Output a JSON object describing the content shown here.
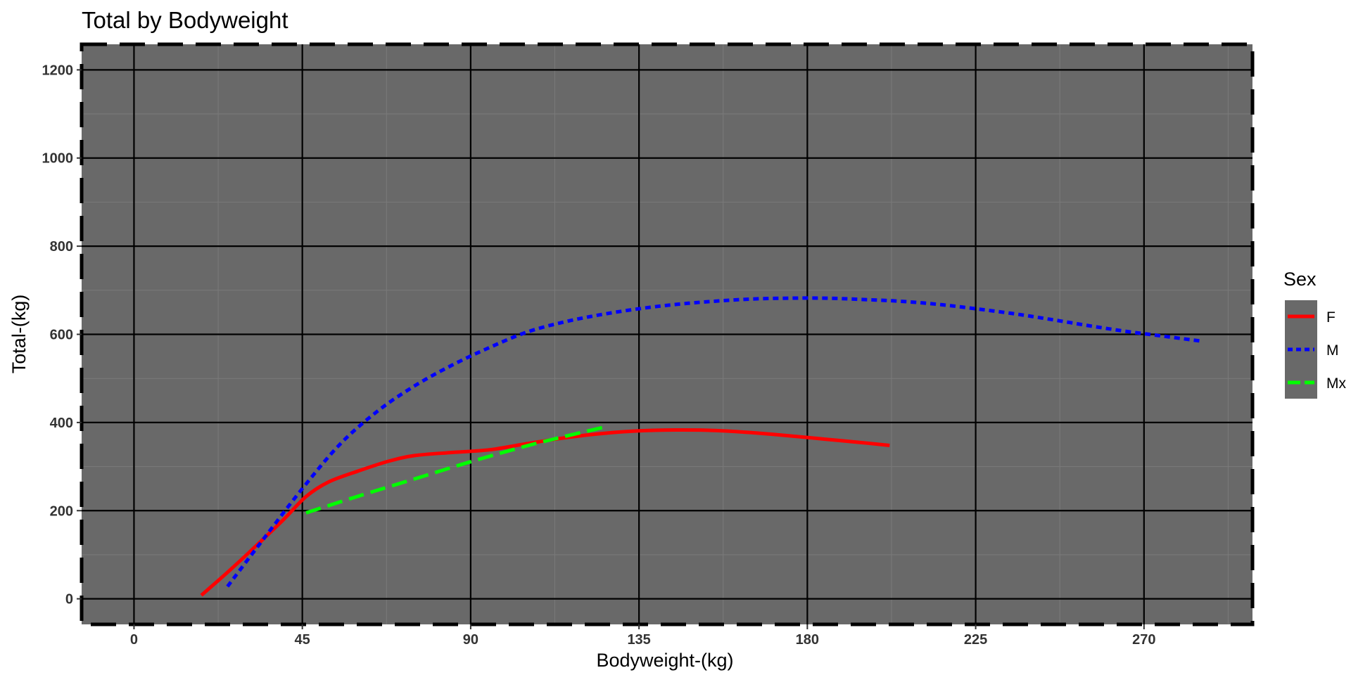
{
  "chart_data": {
    "type": "line",
    "title": "Total by Bodyweight",
    "xlabel": "Bodyweight-(kg)",
    "ylabel": "Total-(kg)",
    "xlim": [
      -14,
      299
    ],
    "ylim": [
      -58,
      1258
    ],
    "x_ticks": [
      0,
      45,
      90,
      135,
      180,
      225,
      270
    ],
    "y_ticks": [
      0,
      200,
      400,
      600,
      800,
      1000,
      1200
    ],
    "grid": true,
    "legend": {
      "title": "Sex",
      "position": "right"
    },
    "series": [
      {
        "name": "F",
        "color": "#ff0000",
        "dash": "solid",
        "x": [
          18,
          25,
          32,
          40,
          46,
          52,
          60,
          68,
          75,
          85,
          95,
          105,
          115,
          125,
          135,
          145,
          155,
          165,
          175,
          185,
          195,
          202
        ],
        "y": [
          8,
          60,
          115,
          180,
          232,
          265,
          290,
          312,
          325,
          332,
          338,
          352,
          365,
          375,
          381,
          383,
          382,
          377,
          370,
          362,
          354,
          348
        ]
      },
      {
        "name": "M",
        "color": "#0000ff",
        "dash": "dotted",
        "x": [
          25,
          35,
          45,
          55,
          65,
          75,
          85,
          95,
          105,
          115,
          125,
          135,
          145,
          155,
          165,
          175,
          185,
          195,
          205,
          215,
          225,
          235,
          245,
          255,
          265,
          275,
          285
        ],
        "y": [
          28,
          140,
          250,
          350,
          425,
          483,
          530,
          570,
          605,
          628,
          645,
          658,
          668,
          675,
          680,
          682,
          682,
          679,
          675,
          668,
          658,
          647,
          634,
          620,
          607,
          596,
          585
        ]
      },
      {
        "name": "Mx",
        "color": "#00ff00",
        "dash": "dashed",
        "x": [
          46,
          60,
          75,
          90,
          105,
          115,
          126
        ],
        "y": [
          195,
          233,
          272,
          311,
          347,
          368,
          390
        ]
      }
    ]
  }
}
